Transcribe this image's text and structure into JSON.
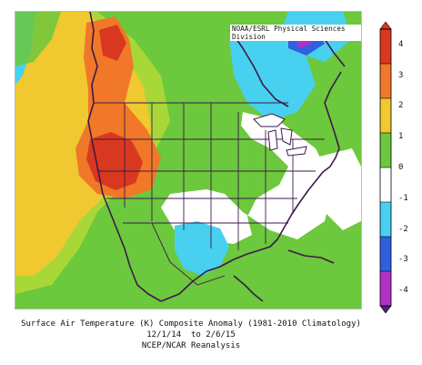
{
  "credit": "NOAA/ESRL Physical Sciences Division",
  "colorbar": {
    "labels": [
      "4",
      "3",
      "2",
      "1",
      "0",
      "-1",
      "-2",
      "-3",
      "-4"
    ],
    "stops": [
      {
        "value": 4,
        "color": "#d93820"
      },
      {
        "value": 3,
        "color": "#f07828"
      },
      {
        "value": 2,
        "color": "#f0c830"
      },
      {
        "value": 1,
        "color": "#6cc83c"
      },
      {
        "value": 0,
        "color": "#ffffff"
      },
      {
        "value": -1,
        "color": "#48d0f0"
      },
      {
        "value": -2,
        "color": "#3060e0"
      },
      {
        "value": -3,
        "color": "#b030c8"
      },
      {
        "value": -4,
        "color": "#50207c"
      }
    ]
  },
  "caption": {
    "line1": "Surface Air Temperature (K) Composite Anomaly (1981-2010 Climatology)",
    "line2": "12/1/14  to 2/6/15",
    "line3": "NCEP/NCAR Reanalysis"
  }
}
